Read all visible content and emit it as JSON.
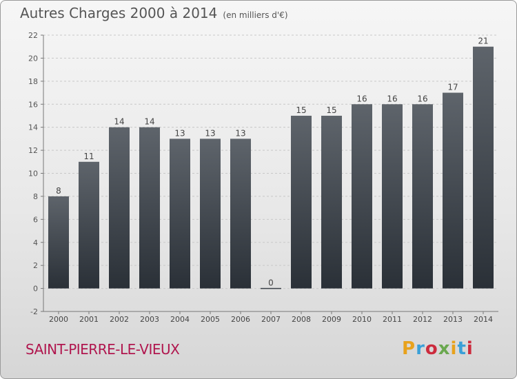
{
  "header": {
    "title": "Autres Charges 2000 à 2014",
    "subtitle": "(en milliers d'€)"
  },
  "footer": {
    "place": "SAINT-PIERRE-LE-VIEUX",
    "logo": "Proxiti"
  },
  "colors": {
    "bar_top": "#5e646b",
    "bar_bottom": "#2a3037",
    "text": "#555555",
    "place": "#b0164e"
  },
  "chart_data": {
    "type": "bar",
    "title": "Autres Charges 2000 à 2014",
    "subtitle": "(en milliers d'€)",
    "categories": [
      "2000",
      "2001",
      "2002",
      "2003",
      "2004",
      "2005",
      "2006",
      "2007",
      "2008",
      "2009",
      "2010",
      "2011",
      "2012",
      "2013",
      "2014"
    ],
    "values": [
      8,
      11,
      14,
      14,
      13,
      13,
      13,
      0,
      15,
      15,
      16,
      16,
      16,
      17,
      21
    ],
    "ylim": [
      -2,
      22
    ],
    "yticks": [
      -2,
      0,
      2,
      4,
      6,
      8,
      10,
      12,
      14,
      16,
      18,
      20,
      22
    ],
    "grid": true,
    "legend": "none"
  }
}
